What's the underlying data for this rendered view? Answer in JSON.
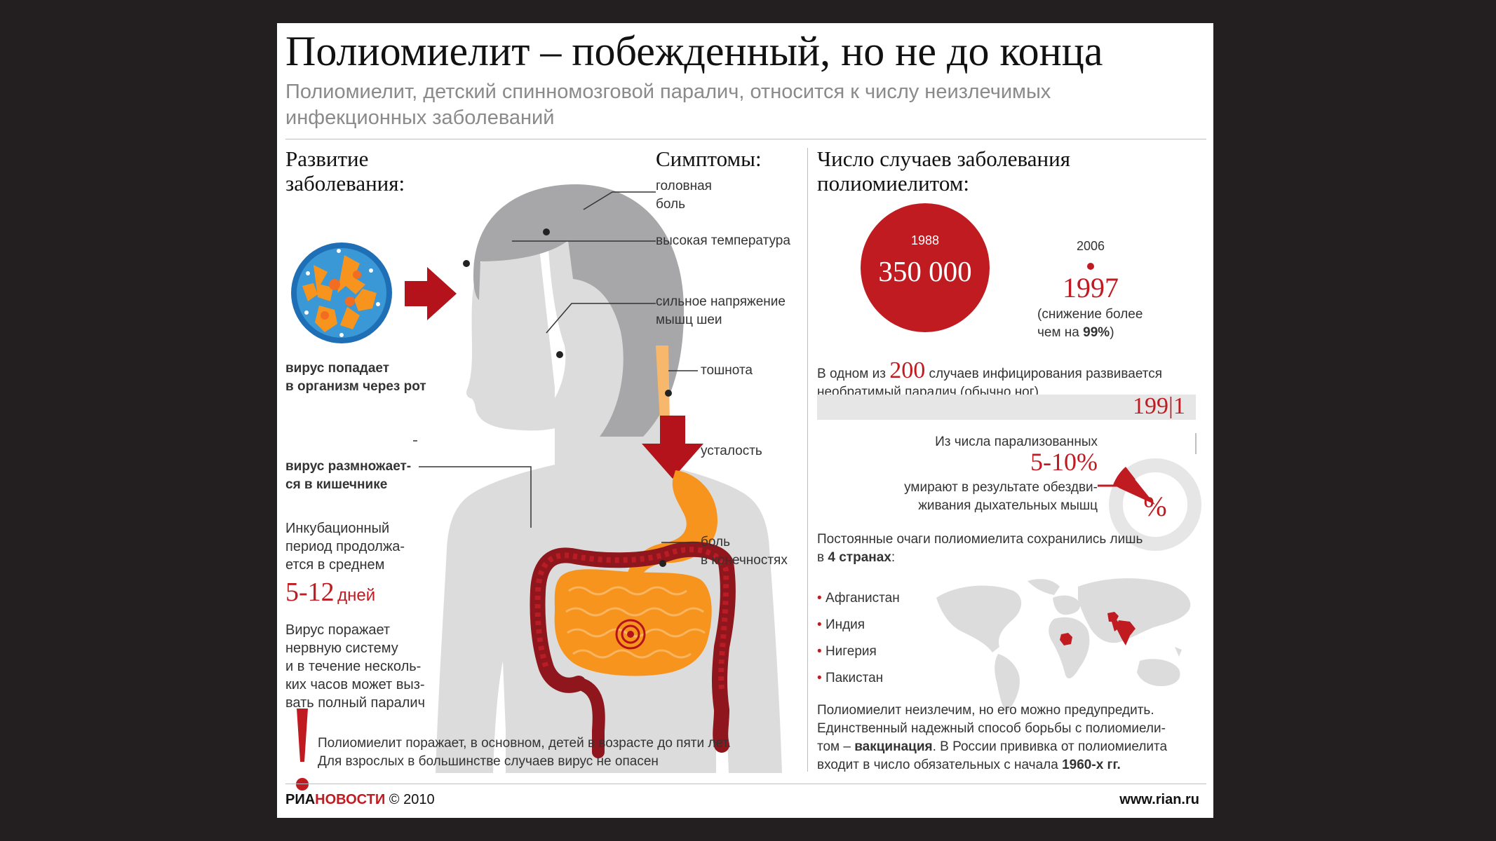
{
  "title": "Полиомиелит – побежденный, но не до конца",
  "subtitle_line1": "Полиомиелит, детский спинномозговой паралич, относится к числу неизлечимых",
  "subtitle_line2": "инфекционных заболеваний",
  "development": {
    "heading_line1": "Развитие",
    "heading_line2": "заболевания:",
    "virus_enters_line1": "вирус попадает",
    "virus_enters_line2": "в организм через рот",
    "virus_multiplies_line1": "вирус размножает-",
    "virus_multiplies_line2": "ся в кишечнике",
    "incubation_line1": "Инкубационный",
    "incubation_line2": "период продолжа-",
    "incubation_line3": "ется в среднем",
    "incubation_value": "5-12",
    "incubation_unit": "дней",
    "nervous_line1": "Вирус поражает",
    "nervous_line2": "нервную систему",
    "nervous_line3": "и в течение несколь-",
    "nervous_line4": "ких часов может выз-",
    "nervous_line5": "вать полный паралич"
  },
  "symptoms": {
    "heading": "Симптомы:",
    "headache_line1": "головная",
    "headache_line2": "боль",
    "fever": "высокая температура",
    "neck_line1": "сильное напряжение",
    "neck_line2": "мышц шеи",
    "nausea": "тошнота",
    "fatigue": "усталость",
    "limbs_line1": "боль",
    "limbs_line2": "в конечностях"
  },
  "warning": {
    "line1": "Полиомиелит поражает, в основном, детей в возрасте до пяти лет.",
    "line2": "Для взрослых в большинстве случаев вирус не опасен"
  },
  "cases": {
    "heading_line1": "Число случаев заболевания",
    "heading_line2": "полиомиелитом:",
    "year_1988": "1988",
    "value_1988": "350 000",
    "year_2006": "2006",
    "value_2006": "1997",
    "reduction_line1": "(снижение более",
    "reduction_line2_prefix": "чем на ",
    "reduction_pct": "99%",
    "reduction_close": ")",
    "paralysis_prefix": "В одном из ",
    "paralysis_number": "200",
    "paralysis_suffix": " случаев инфицирования развивается",
    "paralysis_line2": "необратимый паралич (обычно ног)",
    "ratio_left": "199",
    "ratio_right": "1",
    "ratio_fraction": 0.005,
    "deaths_line1": "Из числа парализованных",
    "deaths_value": "5-10%",
    "deaths_line2": "умирают в результате обездви-",
    "deaths_line3": "живания дыхательных мышц",
    "pie_label": "%",
    "pie_fraction": 0.1
  },
  "countries": {
    "intro_line1": "Постоянные очаги полиомиелита сохранились лишь",
    "intro_prefix": "в ",
    "intro_bold": "4 странах",
    "intro_suffix": ":",
    "items": [
      "Афганистан",
      "Индия",
      "Нигерия",
      "Пакистан"
    ]
  },
  "prevention": {
    "line1": "Полиомиелит неизлечим, но его можно предупредить.",
    "line2": "Единственный надежный способ борьбы с полиомиели-",
    "line3_prefix": "том – ",
    "line3_bold": "вакцинация",
    "line3_suffix": ". В России прививка от полиомиелита",
    "line4_prefix": "входит в число обязательных с начала ",
    "line4_bold": "1960-х гг."
  },
  "footer": {
    "logo_ria": "РИА",
    "logo_novosti": "НОВОСТИ",
    "copyright": "© 2010",
    "url": "www.rian.ru"
  },
  "colors": {
    "accent_red": "#c11b22",
    "silhouette_gray": "#dcdcdc",
    "hair_gray": "#a7a7a9",
    "organ_orange": "#f7941d"
  },
  "icons": [
    "virus-icon",
    "arrow-right-icon",
    "arrow-down-icon",
    "exclamation-icon",
    "world-map-icon",
    "pie-chart-icon"
  ]
}
